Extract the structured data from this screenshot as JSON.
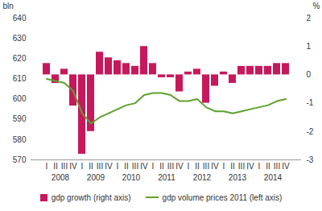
{
  "chart_data": {
    "type": "bar",
    "categories": [
      "I",
      "II",
      "III",
      "IV",
      "I",
      "II",
      "III",
      "IV",
      "I",
      "II",
      "III",
      "IV",
      "I",
      "II",
      "III",
      "IV",
      "I",
      "II",
      "III",
      "IV",
      "I",
      "II",
      "III",
      "IV",
      "I",
      "II",
      "III",
      "IV"
    ],
    "years": [
      "2008",
      "2009",
      "2010",
      "2011",
      "2012",
      "2013",
      "2014"
    ],
    "ylabel": "bln",
    "y2label": "%",
    "ylim": [
      570,
      640
    ],
    "yticks": [
      570,
      580,
      590,
      600,
      610,
      620,
      630,
      640
    ],
    "y2lim": [
      -3,
      2
    ],
    "y2ticks": [
      -3,
      -2,
      -1,
      0,
      1,
      2
    ],
    "grid": false,
    "legend": "bottom",
    "series": [
      {
        "name": "gdp growth (right axis)",
        "type": "bar",
        "axis": "y2",
        "color": "#c8185c",
        "values": [
          0.4,
          -0.3,
          0.2,
          -1.1,
          -2.8,
          -2.0,
          0.8,
          0.6,
          0.5,
          0.4,
          0.3,
          1.0,
          0.4,
          -0.1,
          -0.1,
          -0.6,
          0.1,
          0.2,
          -1.0,
          -0.4,
          0.1,
          -0.3,
          0.3,
          0.3,
          0.3,
          0.3,
          0.4,
          0.4
        ]
      },
      {
        "name": "gdp volume prices 2011 (left axis)",
        "type": "line",
        "color": "#5ca12e",
        "values": [
          610,
          609,
          608,
          604,
          593,
          588,
          591,
          593,
          595,
          597,
          598,
          602,
          603,
          603,
          602,
          599,
          599,
          600,
          596,
          594,
          594,
          593,
          594,
          595,
          596,
          597,
          599,
          600
        ]
      }
    ]
  }
}
